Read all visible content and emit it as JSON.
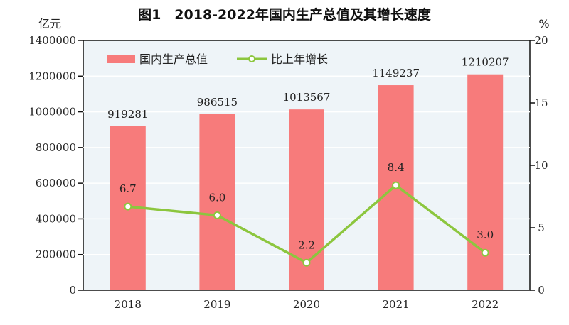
{
  "chart_data": {
    "type": "bar+line",
    "title": "图1　2018-2022年国内生产总值及其增长速度",
    "categories": [
      "2018",
      "2019",
      "2020",
      "2021",
      "2022"
    ],
    "series": [
      {
        "name": "国内生产总值",
        "type": "bar",
        "axis": "left",
        "values": [
          919281,
          986515,
          1013567,
          1149237,
          1210207
        ],
        "labels": [
          "919281",
          "986515",
          "1013567",
          "1149237",
          "1210207"
        ],
        "color": "#f77b7b"
      },
      {
        "name": "比上年增长",
        "type": "line",
        "axis": "right",
        "values": [
          6.7,
          6.0,
          2.2,
          8.4,
          3.0
        ],
        "labels": [
          "6.7",
          "6.0",
          "2.2",
          "8.4",
          "3.0"
        ],
        "color": "#8cc63e"
      }
    ],
    "ylabel": "亿元",
    "y2label": "%",
    "ylim": [
      0,
      1400000
    ],
    "y2lim": [
      0,
      20
    ],
    "yticks": [
      "0",
      "200000",
      "400000",
      "600000",
      "800000",
      "1000000",
      "1200000",
      "1400000"
    ],
    "y2ticks": [
      "0",
      "5",
      "10",
      "15",
      "20"
    ],
    "legend": "top-left",
    "grid": true,
    "background": "#eef4f8"
  }
}
